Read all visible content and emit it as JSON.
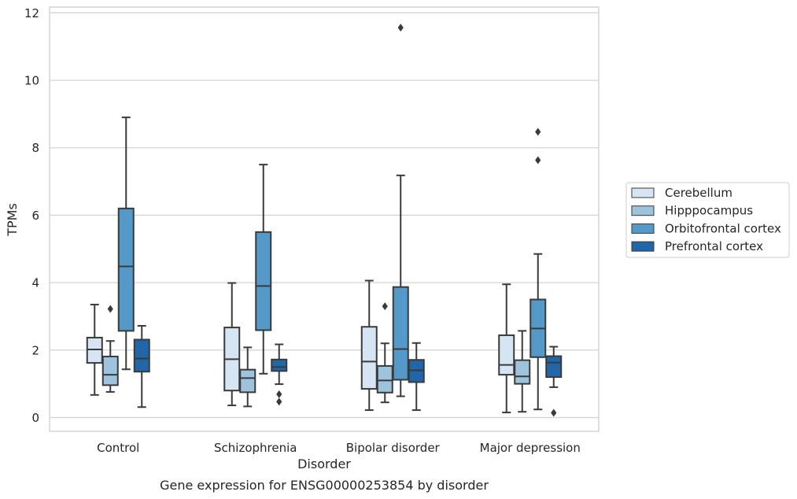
{
  "caption": "Gene expression for ENSG00000253854 by disorder",
  "chart_data": {
    "type": "box",
    "xlabel": "Disorder",
    "ylabel": "TPMs",
    "ylim": [
      -0.4,
      12.2
    ],
    "yticks": [
      0,
      2,
      4,
      6,
      8,
      10,
      12
    ],
    "grid": "horizontal",
    "legend_position": "right",
    "categories": [
      "Control",
      "Schizophrenia",
      "Bipolar disorder",
      "Major depression"
    ],
    "series": [
      {
        "name": "Cerebellum",
        "color": "#d6e5f3",
        "boxes": [
          {
            "min": 0.67,
            "q1": 1.62,
            "median": 2.02,
            "q3": 2.37,
            "max": 3.35,
            "outliers": []
          },
          {
            "min": 0.36,
            "q1": 0.8,
            "median": 1.73,
            "q3": 2.67,
            "max": 3.99,
            "outliers": []
          },
          {
            "min": 0.22,
            "q1": 0.85,
            "median": 1.66,
            "q3": 2.69,
            "max": 4.06,
            "outliers": []
          },
          {
            "min": 0.15,
            "q1": 1.27,
            "median": 1.56,
            "q3": 2.44,
            "max": 3.95,
            "outliers": []
          }
        ]
      },
      {
        "name": "Hipppocampus",
        "color": "#9dc3dd",
        "boxes": [
          {
            "min": 0.76,
            "q1": 0.96,
            "median": 1.27,
            "q3": 1.81,
            "max": 2.27,
            "outliers": [
              3.22
            ]
          },
          {
            "min": 0.33,
            "q1": 0.75,
            "median": 1.17,
            "q3": 1.42,
            "max": 2.08,
            "outliers": []
          },
          {
            "min": 0.45,
            "q1": 0.74,
            "median": 1.1,
            "q3": 1.53,
            "max": 2.2,
            "outliers": [
              3.3
            ]
          },
          {
            "min": 0.17,
            "q1": 1.0,
            "median": 1.22,
            "q3": 1.7,
            "max": 2.57,
            "outliers": []
          }
        ]
      },
      {
        "name": "Orbitofrontal cortex",
        "color": "#5499c7",
        "boxes": [
          {
            "min": 1.43,
            "q1": 2.57,
            "median": 4.48,
            "q3": 6.2,
            "max": 8.9,
            "outliers": []
          },
          {
            "min": 1.3,
            "q1": 2.59,
            "median": 3.9,
            "q3": 5.5,
            "max": 7.5,
            "outliers": []
          },
          {
            "min": 0.63,
            "q1": 1.12,
            "median": 2.03,
            "q3": 3.87,
            "max": 7.18,
            "outliers": [
              11.56
            ]
          },
          {
            "min": 0.24,
            "q1": 1.79,
            "median": 2.64,
            "q3": 3.5,
            "max": 4.85,
            "outliers": [
              7.63,
              8.47
            ]
          }
        ]
      },
      {
        "name": "Prefrontal cortex",
        "color": "#2066a8",
        "boxes": [
          {
            "min": 0.31,
            "q1": 1.36,
            "median": 1.75,
            "q3": 2.31,
            "max": 2.72,
            "outliers": []
          },
          {
            "min": 0.99,
            "q1": 1.38,
            "median": 1.5,
            "q3": 1.72,
            "max": 2.17,
            "outliers": [
              0.47,
              0.69
            ]
          },
          {
            "min": 0.22,
            "q1": 1.05,
            "median": 1.4,
            "q3": 1.71,
            "max": 2.21,
            "outliers": []
          },
          {
            "min": 0.9,
            "q1": 1.2,
            "median": 1.63,
            "q3": 1.82,
            "max": 2.1,
            "outliers": [
              0.14
            ]
          }
        ]
      }
    ]
  }
}
